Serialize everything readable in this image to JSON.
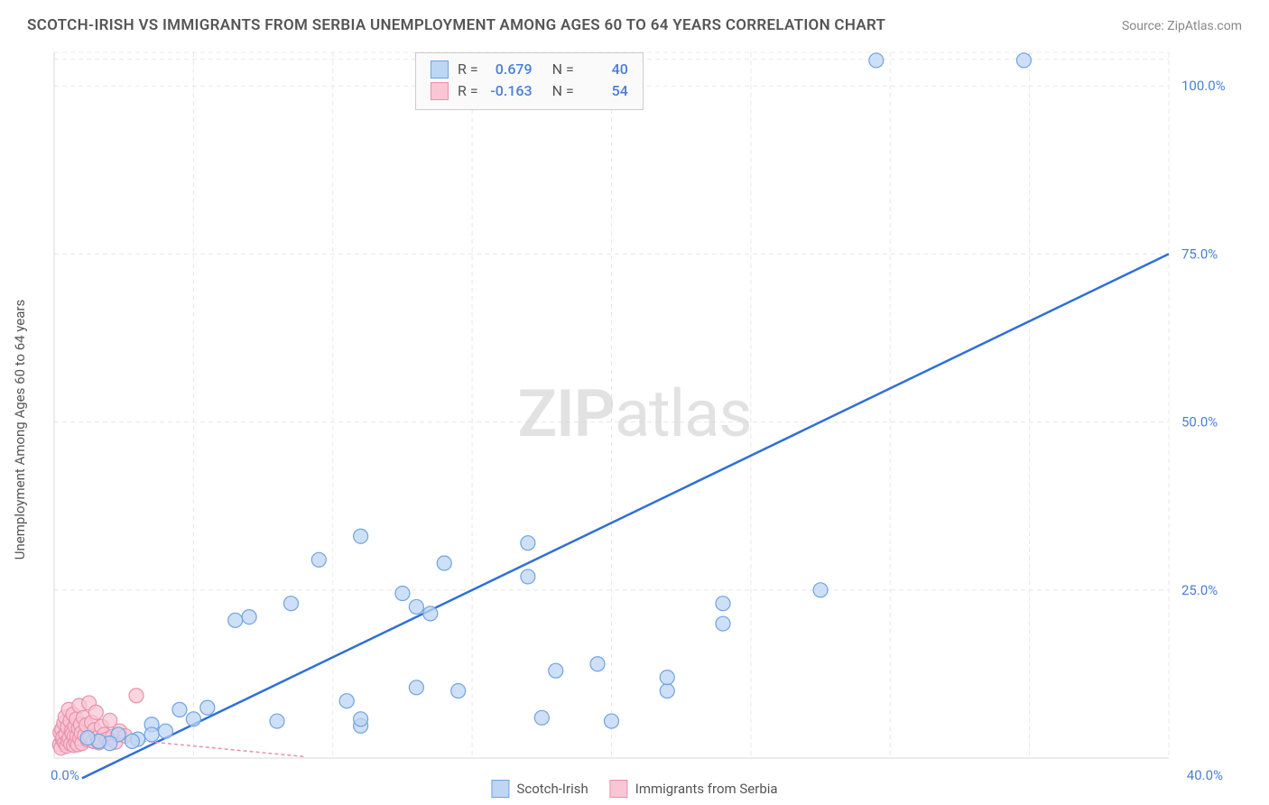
{
  "title": "SCOTCH-IRISH VS IMMIGRANTS FROM SERBIA UNEMPLOYMENT AMONG AGES 60 TO 64 YEARS CORRELATION CHART",
  "source": "Source: ZipAtlas.com",
  "ylabel": "Unemployment Among Ages 60 to 64 years",
  "watermark_a": "ZIP",
  "watermark_b": "atlas",
  "chart": {
    "type": "scatter",
    "background_color": "#ffffff",
    "grid_color": "#e8e8e8",
    "border_color": "#d8d8d8",
    "tick_color": "#4a7fd8",
    "xlim": [
      0,
      40
    ],
    "ylim": [
      0,
      105
    ],
    "xtick_labels": [
      "0.0%",
      "40.0%"
    ],
    "xtick_positions": [
      0,
      40
    ],
    "ytick_labels": [
      "25.0%",
      "50.0%",
      "75.0%",
      "100.0%"
    ],
    "ytick_positions": [
      25,
      50,
      75,
      100
    ],
    "gridlines_y": [
      25,
      50,
      75,
      100,
      104
    ],
    "gridlines_x": [
      5,
      10,
      15,
      20,
      25,
      30,
      35,
      40
    ],
    "marker_radius": 8,
    "marker_stroke_width": 1.2,
    "series": [
      {
        "name": "Scotch-Irish",
        "color_fill": "#bcd6f4",
        "color_stroke": "#6fa3e0",
        "swatch_fill": "#bcd6f4",
        "swatch_border": "#6fa3e0",
        "R": "0.679",
        "N": "40",
        "trend_color": "#2f6fd8",
        "trend": {
          "x1": 1.0,
          "y1": -3,
          "x2": 40.0,
          "y2": 75.0
        },
        "points": [
          [
            29.5,
            103.8
          ],
          [
            34.8,
            103.8
          ],
          [
            27.5,
            25.0
          ],
          [
            24.0,
            20.0
          ],
          [
            24.0,
            23.0
          ],
          [
            22.0,
            10.0
          ],
          [
            22.0,
            12.0
          ],
          [
            20.0,
            5.5
          ],
          [
            19.5,
            14.0
          ],
          [
            18.0,
            13.0
          ],
          [
            17.5,
            6.0
          ],
          [
            17.0,
            32.0
          ],
          [
            17.0,
            27.0
          ],
          [
            14.5,
            10.0
          ],
          [
            14.0,
            29.0
          ],
          [
            13.5,
            21.5
          ],
          [
            13.0,
            22.5
          ],
          [
            13.0,
            10.5
          ],
          [
            12.5,
            24.5
          ],
          [
            11.0,
            4.8
          ],
          [
            11.0,
            5.8
          ],
          [
            11.0,
            33.0
          ],
          [
            10.5,
            8.5
          ],
          [
            9.5,
            29.5
          ],
          [
            8.5,
            23.0
          ],
          [
            8.0,
            5.5
          ],
          [
            7.0,
            21.0
          ],
          [
            6.5,
            20.5
          ],
          [
            5.5,
            7.5
          ],
          [
            5.0,
            5.8
          ],
          [
            4.5,
            7.2
          ],
          [
            4.0,
            4.0
          ],
          [
            3.5,
            5.0
          ],
          [
            3.5,
            3.5
          ],
          [
            3.0,
            2.8
          ],
          [
            2.8,
            2.5
          ],
          [
            2.3,
            3.5
          ],
          [
            2.0,
            2.2
          ],
          [
            1.6,
            2.5
          ],
          [
            1.2,
            3.0
          ]
        ]
      },
      {
        "name": "Immigrants from Serbia",
        "color_fill": "#f8c6d4",
        "color_stroke": "#e991ad",
        "swatch_fill": "#f8c6d4",
        "swatch_border": "#e991ad",
        "R": "-0.163",
        "N": "54",
        "trend_color": "#e991ad",
        "trend": {
          "x1": 0.0,
          "y1": 3.6,
          "x2": 2.5,
          "y2": 2.8
        },
        "trend_dash": {
          "x1": 2.5,
          "y1": 2.8,
          "x2": 9.0,
          "y2": 0.2
        },
        "points": [
          [
            0.2,
            2.0
          ],
          [
            0.22,
            3.8
          ],
          [
            0.25,
            1.5
          ],
          [
            0.28,
            4.3
          ],
          [
            0.3,
            2.8
          ],
          [
            0.32,
            3.1
          ],
          [
            0.35,
            5.2
          ],
          [
            0.38,
            2.3
          ],
          [
            0.4,
            6.1
          ],
          [
            0.42,
            3.5
          ],
          [
            0.45,
            1.8
          ],
          [
            0.48,
            4.6
          ],
          [
            0.5,
            2.6
          ],
          [
            0.52,
            7.2
          ],
          [
            0.55,
            3.0
          ],
          [
            0.58,
            5.5
          ],
          [
            0.6,
            2.1
          ],
          [
            0.62,
            4.0
          ],
          [
            0.65,
            3.6
          ],
          [
            0.68,
            6.5
          ],
          [
            0.7,
            1.9
          ],
          [
            0.72,
            3.2
          ],
          [
            0.75,
            4.8
          ],
          [
            0.78,
            2.4
          ],
          [
            0.8,
            5.8
          ],
          [
            0.82,
            3.3
          ],
          [
            0.85,
            2.0
          ],
          [
            0.88,
            4.4
          ],
          [
            0.9,
            7.8
          ],
          [
            0.92,
            2.9
          ],
          [
            0.95,
            5.0
          ],
          [
            0.98,
            3.7
          ],
          [
            1.0,
            2.2
          ],
          [
            1.05,
            6.0
          ],
          [
            1.1,
            3.4
          ],
          [
            1.15,
            4.9
          ],
          [
            1.2,
            2.7
          ],
          [
            1.25,
            8.2
          ],
          [
            1.3,
            3.1
          ],
          [
            1.35,
            5.3
          ],
          [
            1.4,
            2.5
          ],
          [
            1.45,
            4.2
          ],
          [
            1.5,
            6.8
          ],
          [
            1.55,
            3.0
          ],
          [
            1.6,
            2.3
          ],
          [
            1.7,
            4.7
          ],
          [
            1.8,
            3.5
          ],
          [
            1.9,
            2.8
          ],
          [
            2.0,
            5.6
          ],
          [
            2.1,
            3.2
          ],
          [
            2.2,
            2.4
          ],
          [
            2.35,
            4.0
          ],
          [
            2.55,
            3.3
          ],
          [
            2.95,
            9.3
          ]
        ]
      }
    ]
  },
  "legend": [
    {
      "label": "Scotch-Irish",
      "fill": "#bcd6f4",
      "border": "#6fa3e0"
    },
    {
      "label": "Immigrants from Serbia",
      "fill": "#f8c6d4",
      "border": "#e991ad"
    }
  ],
  "statbox_rows": [
    {
      "swatch_fill": "#bcd6f4",
      "swatch_border": "#6fa3e0",
      "r": "0.679",
      "n": "40"
    },
    {
      "swatch_fill": "#f8c6d4",
      "swatch_border": "#e991ad",
      "r": "-0.163",
      "n": "54"
    }
  ]
}
